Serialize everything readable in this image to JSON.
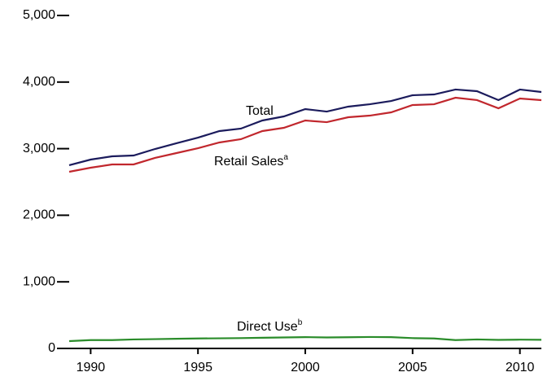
{
  "chart_data": {
    "type": "line",
    "x": [
      1989,
      1990,
      1991,
      1992,
      1993,
      1994,
      1995,
      1996,
      1997,
      1998,
      1999,
      2000,
      2001,
      2002,
      2003,
      2004,
      2005,
      2006,
      2007,
      2008,
      2009,
      2010,
      2011
    ],
    "series": [
      {
        "name": "Total",
        "color": "#1b1b5c",
        "values": [
          2751,
          2836,
          2885,
          2897,
          2995,
          3081,
          3166,
          3264,
          3301,
          3423,
          3484,
          3594,
          3557,
          3631,
          3667,
          3716,
          3802,
          3814,
          3888,
          3863,
          3729,
          3888,
          3851
        ]
      },
      {
        "name": "Retail Sales",
        "marker": "a",
        "color": "#c1272d",
        "values": [
          2653,
          2714,
          2763,
          2763,
          2861,
          2934,
          3007,
          3093,
          3142,
          3264,
          3313,
          3423,
          3398,
          3472,
          3496,
          3545,
          3655,
          3667,
          3765,
          3729,
          3606,
          3753,
          3729
        ]
      },
      {
        "name": "Direct Use",
        "marker": "b",
        "color": "#2a8c2a",
        "values": [
          110,
          125,
          125,
          135,
          140,
          145,
          150,
          152,
          155,
          160,
          165,
          170,
          165,
          168,
          172,
          170,
          155,
          150,
          125,
          135,
          128,
          132,
          130
        ]
      }
    ],
    "xlim": [
      1989,
      2011
    ],
    "xticks": [
      1990,
      1995,
      2000,
      2005,
      2010
    ],
    "ylim": [
      0,
      5000
    ],
    "yticks": [
      0,
      {
        "value": 1000,
        "label": "1,000"
      },
      {
        "value": 2000,
        "label": "2,000"
      },
      {
        "value": 3000,
        "label": "3,000"
      },
      {
        "value": 4000,
        "label": "4,000"
      },
      {
        "value": 5000,
        "label": "5,000"
      }
    ]
  }
}
